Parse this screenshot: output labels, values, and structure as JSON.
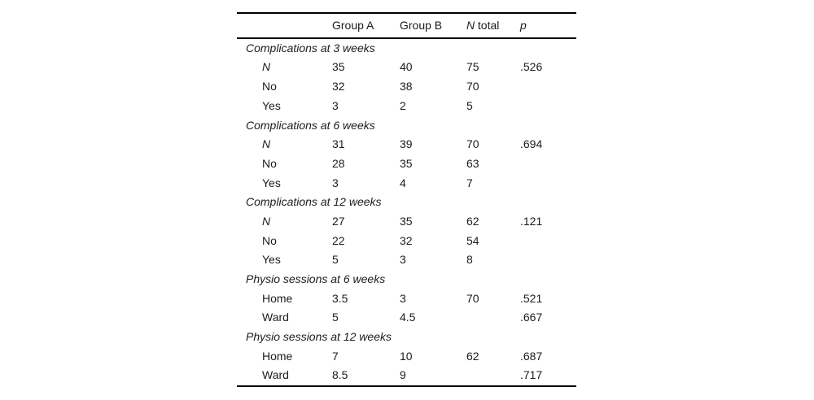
{
  "page": {
    "background": "#ffffff",
    "text_color": "#1c1c1c"
  },
  "table": {
    "header": {
      "col_a": "Group A",
      "col_b": "Group B",
      "col_n_italic": "N",
      "col_n_rest": "total",
      "col_p": "p"
    },
    "sections": [
      {
        "title": "Complications at 3 weeks",
        "rows": [
          {
            "label": "N",
            "group_a": "35",
            "group_b": "40",
            "n_total": "75",
            "p": ".526"
          },
          {
            "label": "No",
            "group_a": "32",
            "group_b": "38",
            "n_total": "70",
            "p": ""
          },
          {
            "label": "Yes",
            "group_a": "3",
            "group_b": "2",
            "n_total": "5",
            "p": ""
          }
        ]
      },
      {
        "title": "Complications at 6 weeks",
        "rows": [
          {
            "label": "N",
            "group_a": "31",
            "group_b": "39",
            "n_total": "70",
            "p": ".694"
          },
          {
            "label": "No",
            "group_a": "28",
            "group_b": "35",
            "n_total": "63",
            "p": ""
          },
          {
            "label": "Yes",
            "group_a": "3",
            "group_b": "4",
            "n_total": "7",
            "p": ""
          }
        ]
      },
      {
        "title": "Complications at 12 weeks",
        "rows": [
          {
            "label": "N",
            "group_a": "27",
            "group_b": "35",
            "n_total": "62",
            "p": ".121"
          },
          {
            "label": "No",
            "group_a": "22",
            "group_b": "32",
            "n_total": "54",
            "p": ""
          },
          {
            "label": "Yes",
            "group_a": "5",
            "group_b": "3",
            "n_total": "8",
            "p": ""
          }
        ]
      },
      {
        "title": "Physio sessions at 6 weeks",
        "rows": [
          {
            "label": "Home",
            "group_a": "3.5",
            "group_b": "3",
            "n_total": "70",
            "p": ".521"
          },
          {
            "label": "Ward",
            "group_a": "5",
            "group_b": "4.5",
            "n_total": "",
            "p": ".667"
          }
        ]
      },
      {
        "title": "Physio sessions at 12 weeks",
        "rows": [
          {
            "label": "Home",
            "group_a": "7",
            "group_b": "10",
            "n_total": "62",
            "p": ".687"
          },
          {
            "label": "Ward",
            "group_a": "8.5",
            "group_b": "9",
            "n_total": "",
            "p": ".717"
          }
        ]
      }
    ]
  }
}
